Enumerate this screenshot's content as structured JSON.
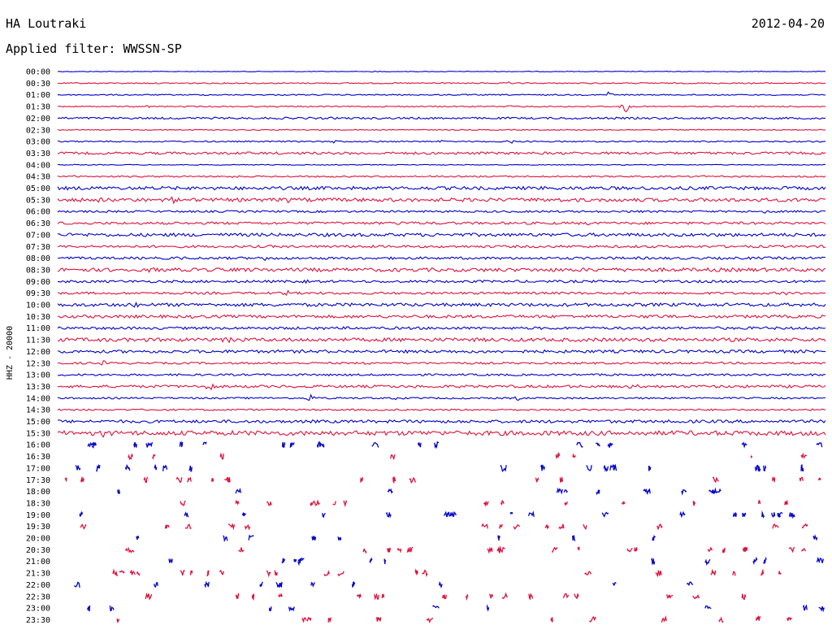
{
  "header": {
    "station": "HA Loutraki",
    "date": "2012-04-20",
    "filter_label": "Applied filter: WWSSN-SP",
    "channel_label": "HHZ - 20000"
  },
  "colors": {
    "even_trace": "#0000cc",
    "odd_trace": "#e0103c",
    "background": "#ffffff",
    "text": "#000000"
  },
  "chart_data": {
    "type": "line",
    "title": "HA Loutraki",
    "subtitle": "Applied filter: WWSSN-SP",
    "ylabel": "HHZ - 20000",
    "xlabel": "",
    "grid": false,
    "legend": "none",
    "row_labels": [
      "00:00",
      "00:30",
      "01:00",
      "01:30",
      "02:00",
      "02:30",
      "03:00",
      "03:30",
      "04:00",
      "04:30",
      "05:00",
      "05:30",
      "06:00",
      "06:30",
      "07:00",
      "07:30",
      "08:00",
      "08:30",
      "09:00",
      "09:30",
      "10:00",
      "10:30",
      "11:00",
      "11:30",
      "12:00",
      "12:30",
      "13:00",
      "13:30",
      "14:00",
      "14:30",
      "15:00",
      "15:30",
      "16:00",
      "16:30",
      "17:00",
      "17:30",
      "18:00",
      "18:30",
      "19:00",
      "19:30",
      "20:00",
      "20:30",
      "21:00",
      "21:30",
      "22:00",
      "22:30",
      "23:00",
      "23:30"
    ],
    "rows": [
      {
        "noise": 0.4,
        "events": [
          {
            "t": 0.37,
            "a": 1.2
          },
          {
            "t": 0.41,
            "a": 1.0
          }
        ]
      },
      {
        "noise": 0.7,
        "events": [
          {
            "t": 0.59,
            "a": 2.0
          },
          {
            "t": 0.49,
            "a": 1.2
          }
        ]
      },
      {
        "noise": 0.7,
        "events": [
          {
            "t": 0.72,
            "a": 9.0
          },
          {
            "t": 0.86,
            "a": 1.5
          }
        ]
      },
      {
        "noise": 0.7,
        "events": [
          {
            "t": 0.12,
            "a": 2.0
          },
          {
            "t": 0.59,
            "a": 3.0
          },
          {
            "t": 0.74,
            "a": 10.0
          }
        ]
      },
      {
        "noise": 1.2,
        "events": []
      },
      {
        "noise": 0.6,
        "events": []
      },
      {
        "noise": 0.8,
        "events": [
          {
            "t": 0.36,
            "a": 2.0
          },
          {
            "t": 0.5,
            "a": 2.0
          },
          {
            "t": 0.59,
            "a": 2.5
          }
        ]
      },
      {
        "noise": 1.5,
        "events": []
      },
      {
        "noise": 0.5,
        "events": []
      },
      {
        "noise": 0.9,
        "events": [
          {
            "t": 0.02,
            "a": 2.5
          },
          {
            "t": 0.23,
            "a": 2.0
          },
          {
            "t": 0.49,
            "a": 2.0
          },
          {
            "t": 0.84,
            "a": 1.8
          }
        ]
      },
      {
        "noise": 2.0,
        "events": []
      },
      {
        "noise": 2.2,
        "events": [
          {
            "t": 0.05,
            "a": 3.0
          },
          {
            "t": 0.15,
            "a": 3.0
          },
          {
            "t": 0.3,
            "a": 2.5
          }
        ]
      },
      {
        "noise": 1.2,
        "events": [
          {
            "t": 0.52,
            "a": 3.0
          },
          {
            "t": 0.75,
            "a": 2.0
          },
          {
            "t": 0.92,
            "a": 2.0
          }
        ]
      },
      {
        "noise": 1.5,
        "events": [
          {
            "t": 0.02,
            "a": 2.5
          },
          {
            "t": 0.16,
            "a": 2.5
          },
          {
            "t": 0.45,
            "a": 2.5
          },
          {
            "t": 0.69,
            "a": 2.5
          }
        ]
      },
      {
        "noise": 2.0,
        "events": []
      },
      {
        "noise": 1.5,
        "events": []
      },
      {
        "noise": 1.5,
        "events": [
          {
            "t": 0.16,
            "a": 2.5
          },
          {
            "t": 0.27,
            "a": 2.5
          }
        ]
      },
      {
        "noise": 2.2,
        "events": [
          {
            "t": 0.12,
            "a": 3.0
          },
          {
            "t": 0.2,
            "a": 3.0
          },
          {
            "t": 0.3,
            "a": 3.0
          }
        ]
      },
      {
        "noise": 1.5,
        "events": [
          {
            "t": 0.33,
            "a": 2.5
          }
        ]
      },
      {
        "noise": 1.4,
        "events": [
          {
            "t": 0.3,
            "a": 2.5
          },
          {
            "t": 0.95,
            "a": 2.5
          }
        ]
      },
      {
        "noise": 2.0,
        "events": [
          {
            "t": 0.1,
            "a": 3.0
          }
        ]
      },
      {
        "noise": 1.8,
        "events": [
          {
            "t": 0.17,
            "a": 2.0
          },
          {
            "t": 0.78,
            "a": 2.0
          }
        ]
      },
      {
        "noise": 1.6,
        "events": [
          {
            "t": 0.35,
            "a": 2.0
          }
        ]
      },
      {
        "noise": 2.2,
        "events": [
          {
            "t": 0.22,
            "a": 5.0
          }
        ]
      },
      {
        "noise": 1.8,
        "events": []
      },
      {
        "noise": 1.2,
        "events": [
          {
            "t": 0.06,
            "a": 2.5
          },
          {
            "t": 0.41,
            "a": 3.0
          }
        ]
      },
      {
        "noise": 1.2,
        "events": []
      },
      {
        "noise": 1.6,
        "events": [
          {
            "t": 0.2,
            "a": 8.0
          },
          {
            "t": 0.75,
            "a": 3.5
          }
        ]
      },
      {
        "noise": 1.0,
        "events": [
          {
            "t": 0.33,
            "a": 6.0
          },
          {
            "t": 0.44,
            "a": 3.0
          },
          {
            "t": 0.6,
            "a": 2.5
          }
        ]
      },
      {
        "noise": 1.0,
        "events": [
          {
            "t": 0.98,
            "a": 3.0
          }
        ]
      },
      {
        "noise": 1.8,
        "events": []
      },
      {
        "noise": 2.8,
        "events": [
          {
            "t": 0.06,
            "a": 3.0
          }
        ]
      },
      {
        "noise": 3.5,
        "events": []
      },
      {
        "noise": 3.5,
        "events": []
      },
      {
        "noise": 4.0,
        "events": []
      },
      {
        "noise": 3.5,
        "events": []
      },
      {
        "noise": 3.0,
        "events": []
      },
      {
        "noise": 3.0,
        "events": []
      },
      {
        "noise": 3.0,
        "events": []
      },
      {
        "noise": 3.0,
        "events": []
      },
      {
        "noise": 3.5,
        "events": []
      },
      {
        "noise": 3.5,
        "events": []
      },
      {
        "noise": 4.0,
        "events": []
      },
      {
        "noise": 3.5,
        "events": []
      },
      {
        "noise": 3.5,
        "events": []
      },
      {
        "noise": 3.5,
        "events": []
      },
      {
        "noise": 3.5,
        "events": []
      },
      {
        "noise": 3.5,
        "events": []
      }
    ]
  }
}
